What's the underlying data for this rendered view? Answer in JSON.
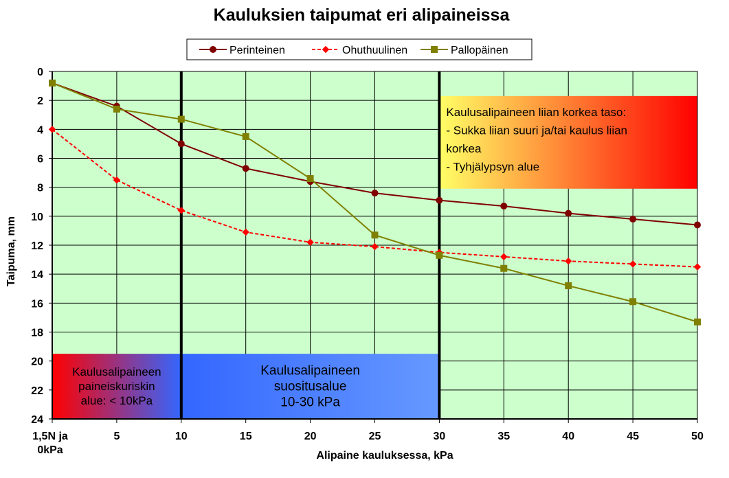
{
  "chart_data": {
    "type": "line",
    "title": "Kauluksien taipumat eri alipaineissa",
    "xlabel": "Alipaine kauluksessa,  kPa",
    "ylabel": "Taipuma, mm",
    "x": [
      0,
      5,
      10,
      15,
      20,
      25,
      30,
      35,
      40,
      45,
      50
    ],
    "x_tick_labels": [
      "1,5N ja\n0kPa",
      "5",
      "10",
      "15",
      "20",
      "25",
      "30",
      "35",
      "40",
      "45",
      "50"
    ],
    "xlim": [
      0,
      50
    ],
    "ylim": [
      0,
      24
    ],
    "y_reversed": true,
    "y_ticks": [
      "0",
      "2",
      "4",
      "6",
      "8",
      "10",
      "12",
      "14",
      "16",
      "18",
      "20",
      "22",
      "24"
    ],
    "grid": true,
    "legend_position": "top-center",
    "background_color": "#ccffcc",
    "series": [
      {
        "name": "Perinteinen",
        "color": "#800000",
        "marker": "circle",
        "line_style": "solid",
        "values": [
          0.8,
          2.4,
          5.0,
          6.7,
          7.6,
          8.4,
          8.9,
          9.3,
          9.8,
          10.2,
          10.6
        ]
      },
      {
        "name": "Ohuthuulinen",
        "color": "#ff0000",
        "marker": "diamond",
        "line_style": "dashed",
        "values": [
          4.0,
          7.5,
          9.6,
          11.1,
          11.8,
          12.1,
          12.5,
          12.8,
          13.1,
          13.3,
          13.5
        ]
      },
      {
        "name": "Pallopäinen",
        "color": "#808000",
        "marker": "square",
        "line_style": "solid",
        "values": [
          0.8,
          2.6,
          3.3,
          4.5,
          7.4,
          11.3,
          12.7,
          13.6,
          14.8,
          15.9,
          17.3
        ]
      }
    ],
    "reference_lines_x": [
      10,
      30
    ],
    "regions": [
      {
        "name": "high-level",
        "x_range": [
          30,
          50
        ],
        "y_range": [
          1.7,
          8.1
        ],
        "gradient": [
          "#ffff66",
          "#ff0000"
        ],
        "lines": [
          "Kaulusalipaineen liian korkea taso:",
          "- Sukka liian suuri ja/tai kaulus liian",
          "korkea",
          "- Tyhjälypsyn alue"
        ]
      },
      {
        "name": "recommended",
        "x_range": [
          10,
          30
        ],
        "y_range": [
          19.5,
          24
        ],
        "gradient": [
          "#3366ff",
          "#6699ff"
        ],
        "lines": [
          "Kaulusalipaineen",
          "suositusalue",
          "10-30 kPa"
        ]
      },
      {
        "name": "low-level",
        "x_range": [
          0,
          10
        ],
        "y_range": [
          19.5,
          24
        ],
        "gradient": [
          "#ff0000",
          "#3366ff"
        ],
        "lines": [
          "Kaulusalipaineen",
          "paineiskuriskin",
          "alue: < 10kPa"
        ]
      }
    ]
  }
}
